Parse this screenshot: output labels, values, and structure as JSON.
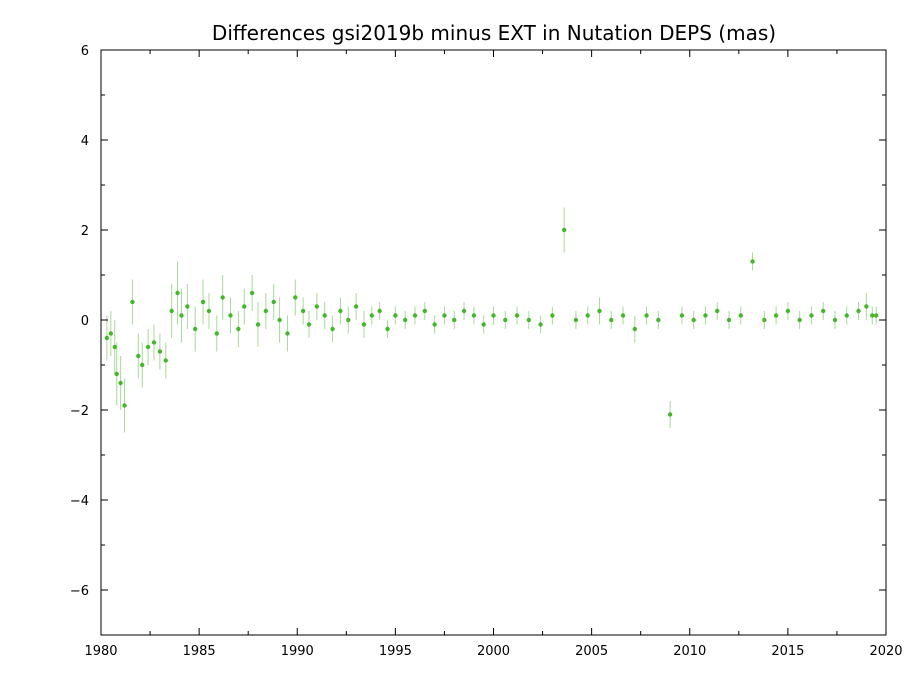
{
  "chart_data": {
    "type": "scatter",
    "title": "Differences gsi2019b minus EXT in Nutation DEPS (mas)",
    "xlabel": "",
    "ylabel": "",
    "xlim": [
      1980,
      2020
    ],
    "ylim": [
      -7,
      6
    ],
    "x_ticks": [
      1980,
      1985,
      1990,
      1995,
      2000,
      2005,
      2010,
      2015,
      2020
    ],
    "x_tick_labels": [
      "1980",
      "1985",
      "1990",
      "1995",
      "2000",
      "2005",
      "2010",
      "2015",
      "2020"
    ],
    "y_ticks": [
      6,
      4,
      2,
      0,
      -2,
      -4,
      -6
    ],
    "y_tick_labels": [
      "6",
      "4",
      "2",
      "0",
      "−2",
      "−4",
      "−6"
    ],
    "grid": false,
    "colors": {
      "points": "#44b62a",
      "error_bars": "#a8d99a",
      "frame": "#000000"
    },
    "series": [
      {
        "x": [
          1980.3,
          1980.5,
          1980.7,
          1980.8,
          1981.0,
          1981.2,
          1981.6,
          1981.9,
          1982.1,
          1982.4,
          1982.7,
          1983.0,
          1983.3,
          1983.6,
          1983.9,
          1984.1,
          1984.4,
          1984.8,
          1985.2,
          1985.5,
          1985.9,
          1986.2,
          1986.6,
          1987.0,
          1987.3,
          1987.7,
          1988.0,
          1988.4,
          1988.8,
          1989.1,
          1989.5,
          1989.9,
          1990.3,
          1990.6,
          1991.0,
          1991.4,
          1991.8,
          1992.2,
          1992.6,
          1993.0,
          1993.4,
          1993.8,
          1994.2,
          1994.6,
          1995.0,
          1995.5,
          1996.0,
          1996.5,
          1997.0,
          1997.5,
          1998.0,
          1998.5,
          1999.0,
          1999.5,
          2000.0,
          2000.6,
          2001.2,
          2001.8,
          2002.4,
          2003.0,
          2003.6,
          2004.2,
          2004.8,
          2005.4,
          2006.0,
          2006.6,
          2007.2,
          2007.8,
          2008.4,
          2009.0,
          2009.6,
          2010.2,
          2010.8,
          2011.4,
          2012.0,
          2012.6,
          2013.2,
          2013.8,
          2014.4,
          2015.0,
          2015.6,
          2016.2,
          2016.8,
          2017.4,
          2018.0,
          2018.6,
          2019.0,
          2019.3,
          2019.5
        ],
        "y": [
          -0.4,
          -0.3,
          -0.6,
          -1.2,
          -1.4,
          -1.9,
          0.4,
          -0.8,
          -1.0,
          -0.6,
          -0.5,
          -0.7,
          -0.9,
          0.2,
          0.6,
          0.1,
          0.3,
          -0.2,
          0.4,
          0.2,
          -0.3,
          0.5,
          0.1,
          -0.2,
          0.3,
          0.6,
          -0.1,
          0.2,
          0.4,
          0.0,
          -0.3,
          0.5,
          0.2,
          -0.1,
          0.3,
          0.1,
          -0.2,
          0.2,
          0.0,
          0.3,
          -0.1,
          0.1,
          0.2,
          -0.2,
          0.1,
          0.0,
          0.1,
          0.2,
          -0.1,
          0.1,
          0.0,
          0.2,
          0.1,
          -0.1,
          0.1,
          0.0,
          0.1,
          0.0,
          -0.1,
          0.1,
          2.0,
          0.0,
          0.1,
          0.2,
          0.0,
          0.1,
          -0.2,
          0.1,
          0.0,
          -2.1,
          0.1,
          0.0,
          0.1,
          0.2,
          0.0,
          0.1,
          1.3,
          0.0,
          0.1,
          0.2,
          0.0,
          0.1,
          0.2,
          0.0,
          0.1,
          0.2,
          0.3,
          0.1,
          0.1
        ],
        "err": [
          0.5,
          0.5,
          0.6,
          0.7,
          0.6,
          0.6,
          0.5,
          0.5,
          0.5,
          0.4,
          0.4,
          0.4,
          0.4,
          0.6,
          0.7,
          0.6,
          0.5,
          0.5,
          0.5,
          0.4,
          0.4,
          0.5,
          0.4,
          0.4,
          0.4,
          0.4,
          0.5,
          0.4,
          0.4,
          0.5,
          0.4,
          0.4,
          0.3,
          0.3,
          0.3,
          0.3,
          0.3,
          0.3,
          0.3,
          0.3,
          0.3,
          0.2,
          0.2,
          0.2,
          0.2,
          0.2,
          0.2,
          0.2,
          0.2,
          0.2,
          0.2,
          0.2,
          0.2,
          0.2,
          0.2,
          0.2,
          0.2,
          0.2,
          0.2,
          0.2,
          0.5,
          0.2,
          0.2,
          0.3,
          0.2,
          0.2,
          0.3,
          0.2,
          0.2,
          0.3,
          0.2,
          0.2,
          0.2,
          0.2,
          0.2,
          0.2,
          0.2,
          0.2,
          0.2,
          0.2,
          0.2,
          0.2,
          0.2,
          0.2,
          0.2,
          0.2,
          0.3,
          0.2,
          0.2
        ]
      }
    ]
  }
}
